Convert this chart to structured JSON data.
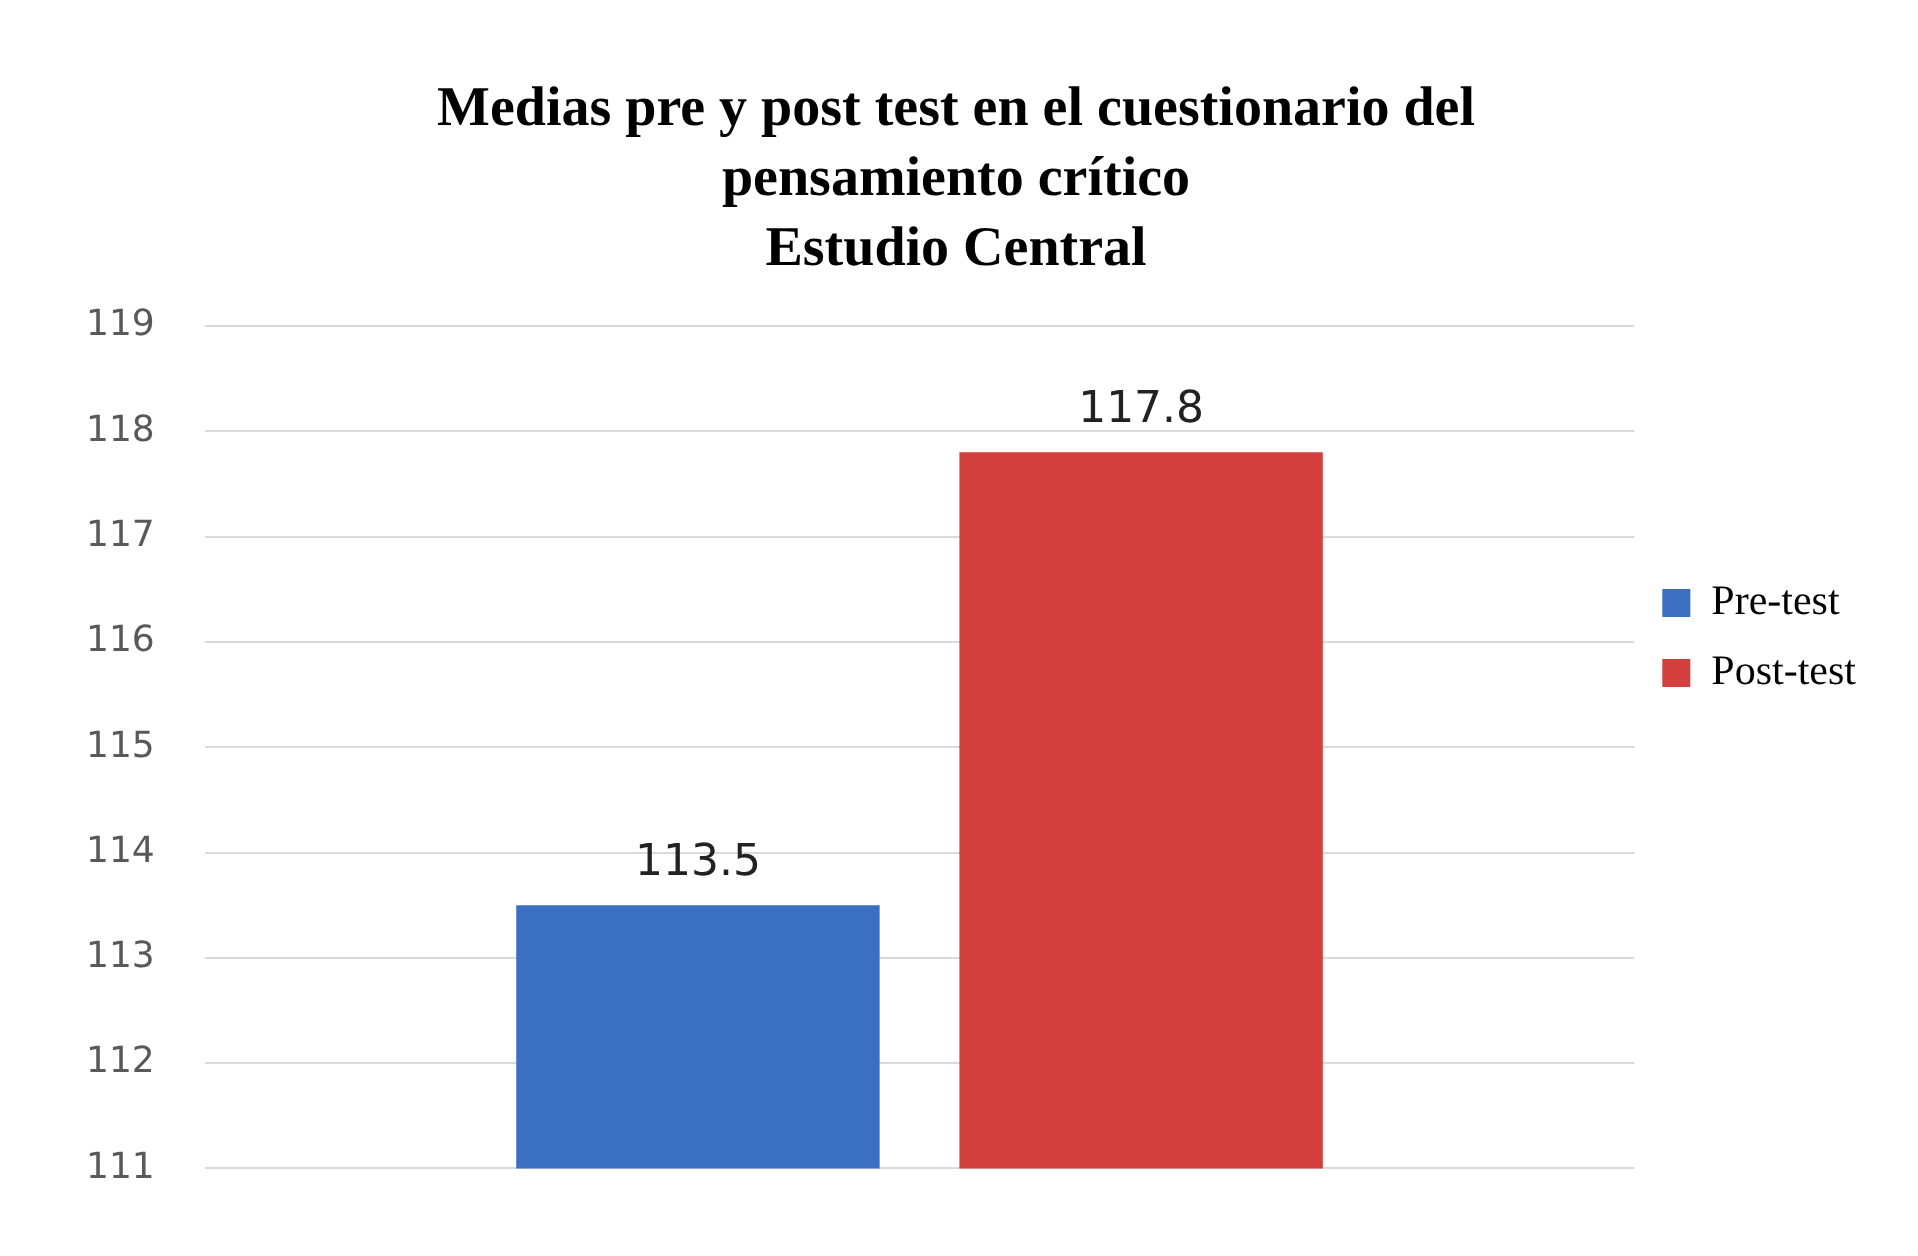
{
  "chart_data": {
    "type": "bar",
    "title": "Medias pre y post test en el cuestionario del\npensamiento crítico\nEstudio Central",
    "categories": [
      null
    ],
    "series": [
      {
        "name": "Pre-test",
        "color": "#3b6fc2",
        "values": [
          113.5
        ]
      },
      {
        "name": "Post-test",
        "color": "#d23f3d",
        "values": [
          117.8
        ]
      }
    ],
    "ylim": [
      111,
      119
    ],
    "yticks": [
      111,
      112,
      113,
      114,
      115,
      116,
      117,
      118,
      119
    ],
    "grid": "y",
    "legend": "right",
    "data_labels": true,
    "tick_labels": "y"
  }
}
